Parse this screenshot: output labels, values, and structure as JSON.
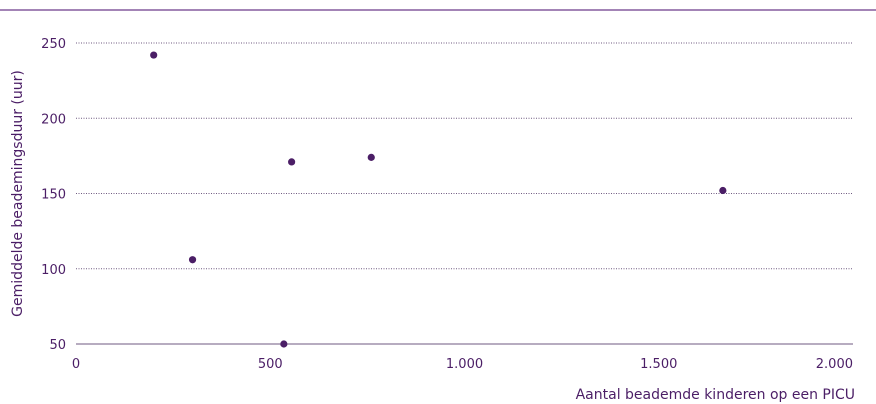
{
  "chart_data": {
    "type": "scatter",
    "title": "",
    "xlabel": "Aantal beademde kinderen op een PICU",
    "ylabel": "Gemiddelde beademingsduur (uur)",
    "xlim": [
      0,
      2000
    ],
    "ylim": [
      50,
      250
    ],
    "x_ticks": [
      0,
      500,
      1000,
      1500,
      2000
    ],
    "x_tick_labels": [
      "0",
      "500",
      "1.000",
      "1.500",
      "2.000"
    ],
    "y_ticks": [
      50,
      100,
      150,
      200,
      250
    ],
    "y_tick_labels": [
      "50",
      "100",
      "150",
      "200",
      "250"
    ],
    "grid": true,
    "points": [
      {
        "x": 200,
        "y": 242
      },
      {
        "x": 300,
        "y": 106
      },
      {
        "x": 535,
        "y": 50
      },
      {
        "x": 555,
        "y": 171
      },
      {
        "x": 760,
        "y": 174
      },
      {
        "x": 1665,
        "y": 152
      }
    ],
    "colors": {
      "points": "#4b1e66",
      "text": "#4b1e66",
      "top_rule": "#6c3b8a",
      "grid": "#6f5a80"
    }
  }
}
